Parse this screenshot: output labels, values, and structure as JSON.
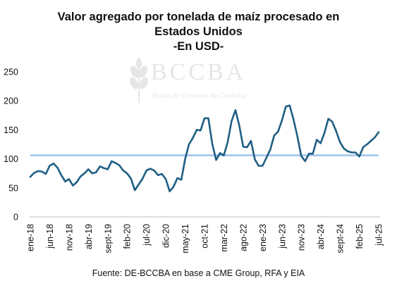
{
  "chart_data": {
    "type": "line",
    "title_lines": [
      "Valor agregado por tonelada de maíz procesado en",
      "Estados Unidos",
      "-En USD-"
    ],
    "source": "Fuente: DE-BCCBA en base a CME Group, RFA y EIA",
    "watermark": {
      "name": "BCCBA",
      "subtitle": "Bolsa de Cereales de Córdoba"
    },
    "ylim": [
      0,
      250
    ],
    "yticks": [
      "0",
      "50",
      "100",
      "150",
      "200",
      "250"
    ],
    "grid": false,
    "xlabels": [
      "ene-18",
      "jun-18",
      "nov-18",
      "abr-19",
      "sept-19",
      "feb-20",
      "jul-20",
      "dic-20",
      "may-21",
      "oct-21",
      "mar-22",
      "ago-22",
      "ene-23",
      "jun-23",
      "nov-23",
      "abr-24",
      "sept-24",
      "feb-25",
      "jul-25"
    ],
    "x_start": "ene-18",
    "x_end": "jul-25",
    "reference_line": {
      "value": 106,
      "color": "#9dc3e6"
    },
    "series": [
      {
        "color": "#1f5f84",
        "values": [
          69,
          76,
          79,
          78,
          74,
          88,
          92,
          85,
          72,
          61,
          65,
          54,
          60,
          70,
          75,
          82,
          75,
          77,
          87,
          84,
          82,
          96,
          93,
          89,
          80,
          75,
          66,
          46,
          56,
          66,
          80,
          83,
          80,
          72,
          74,
          65,
          44,
          52,
          67,
          64,
          100,
          125,
          136,
          150,
          149,
          170,
          170,
          126,
          98,
          110,
          106,
          129,
          165,
          184,
          157,
          121,
          120,
          131,
          99,
          88,
          88,
          102,
          116,
          140,
          147,
          166,
          190,
          192,
          168,
          139,
          105,
          96,
          109,
          109,
          133,
          127,
          145,
          169,
          164,
          148,
          129,
          118,
          113,
          111,
          111,
          104,
          120,
          125,
          131,
          137,
          146
        ]
      }
    ]
  }
}
